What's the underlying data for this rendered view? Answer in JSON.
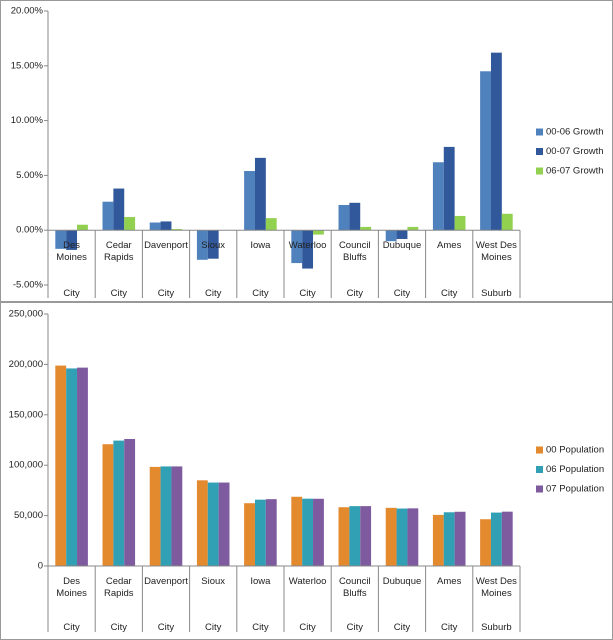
{
  "chart_data": [
    {
      "type": "bar",
      "categories": [
        "Des Moines",
        "Cedar Rapids",
        "Davenport",
        "Sioux",
        "Iowa",
        "Waterloo",
        "Council Bluffs",
        "Dubuque",
        "Ames",
        "West Des Moines"
      ],
      "groups": [
        "City",
        "City",
        "City",
        "City",
        "City",
        "City",
        "City",
        "City",
        "City",
        "Suburb"
      ],
      "series": [
        {
          "name": "00-06 Growth",
          "color": "#4f81bd",
          "values": [
            -1.7,
            2.6,
            0.7,
            -2.7,
            5.4,
            -3.0,
            2.3,
            -1.0,
            6.2,
            14.5
          ]
        },
        {
          "name": "00-07 Growth",
          "color": "#30589a",
          "values": [
            -1.8,
            3.8,
            0.8,
            -2.6,
            6.6,
            -3.5,
            2.5,
            -0.8,
            7.6,
            16.2
          ]
        },
        {
          "name": "06-07 Growth",
          "color": "#92d050",
          "values": [
            0.5,
            1.2,
            0.1,
            0,
            1.1,
            -0.4,
            0.3,
            0.3,
            1.3,
            1.5
          ]
        }
      ],
      "ylim": [
        -5,
        20
      ],
      "yticks": [
        {
          "value": -5,
          "label": "-5.00%"
        },
        {
          "value": 0,
          "label": "0.00%"
        },
        {
          "value": 5,
          "label": "5.00%"
        },
        {
          "value": 10,
          "label": "10.00%"
        },
        {
          "value": 15,
          "label": "15.00%"
        },
        {
          "value": 20,
          "label": "20.00%"
        }
      ],
      "grid": false,
      "legend": "right"
    },
    {
      "type": "bar",
      "categories": [
        "Des Moines",
        "Cedar Rapids",
        "Davenport",
        "Sioux",
        "Iowa",
        "Waterloo",
        "Council Bluffs",
        "Dubuque",
        "Ames",
        "West Des Moines"
      ],
      "groups": [
        "City",
        "City",
        "City",
        "City",
        "City",
        "City",
        "City",
        "City",
        "City",
        "Suburb"
      ],
      "series": [
        {
          "name": "00 Population",
          "color": "#e3892e",
          "values": [
            198800,
            120800,
            98300,
            85000,
            62300,
            68700,
            58300,
            57700,
            50700,
            46400
          ]
        },
        {
          "name": "06 Population",
          "color": "#31a0b4",
          "values": [
            196000,
            124400,
            98800,
            82800,
            65800,
            66800,
            59400,
            57000,
            53300,
            53000
          ]
        },
        {
          "name": "07 Population",
          "color": "#7e5a9f",
          "values": [
            196800,
            126000,
            98800,
            82800,
            66300,
            66700,
            59400,
            57200,
            53800,
            53900
          ]
        }
      ],
      "ylim": [
        0,
        250000
      ],
      "yticks": [
        0,
        {
          "value": 50000,
          "label": "50,000"
        },
        {
          "value": 100000,
          "label": "100,000"
        },
        {
          "value": 150000,
          "label": "150,000"
        },
        {
          "value": 200000,
          "label": "200,000"
        },
        {
          "value": 250000,
          "label": "250,000"
        }
      ],
      "grid": false,
      "legend": "right"
    }
  ]
}
